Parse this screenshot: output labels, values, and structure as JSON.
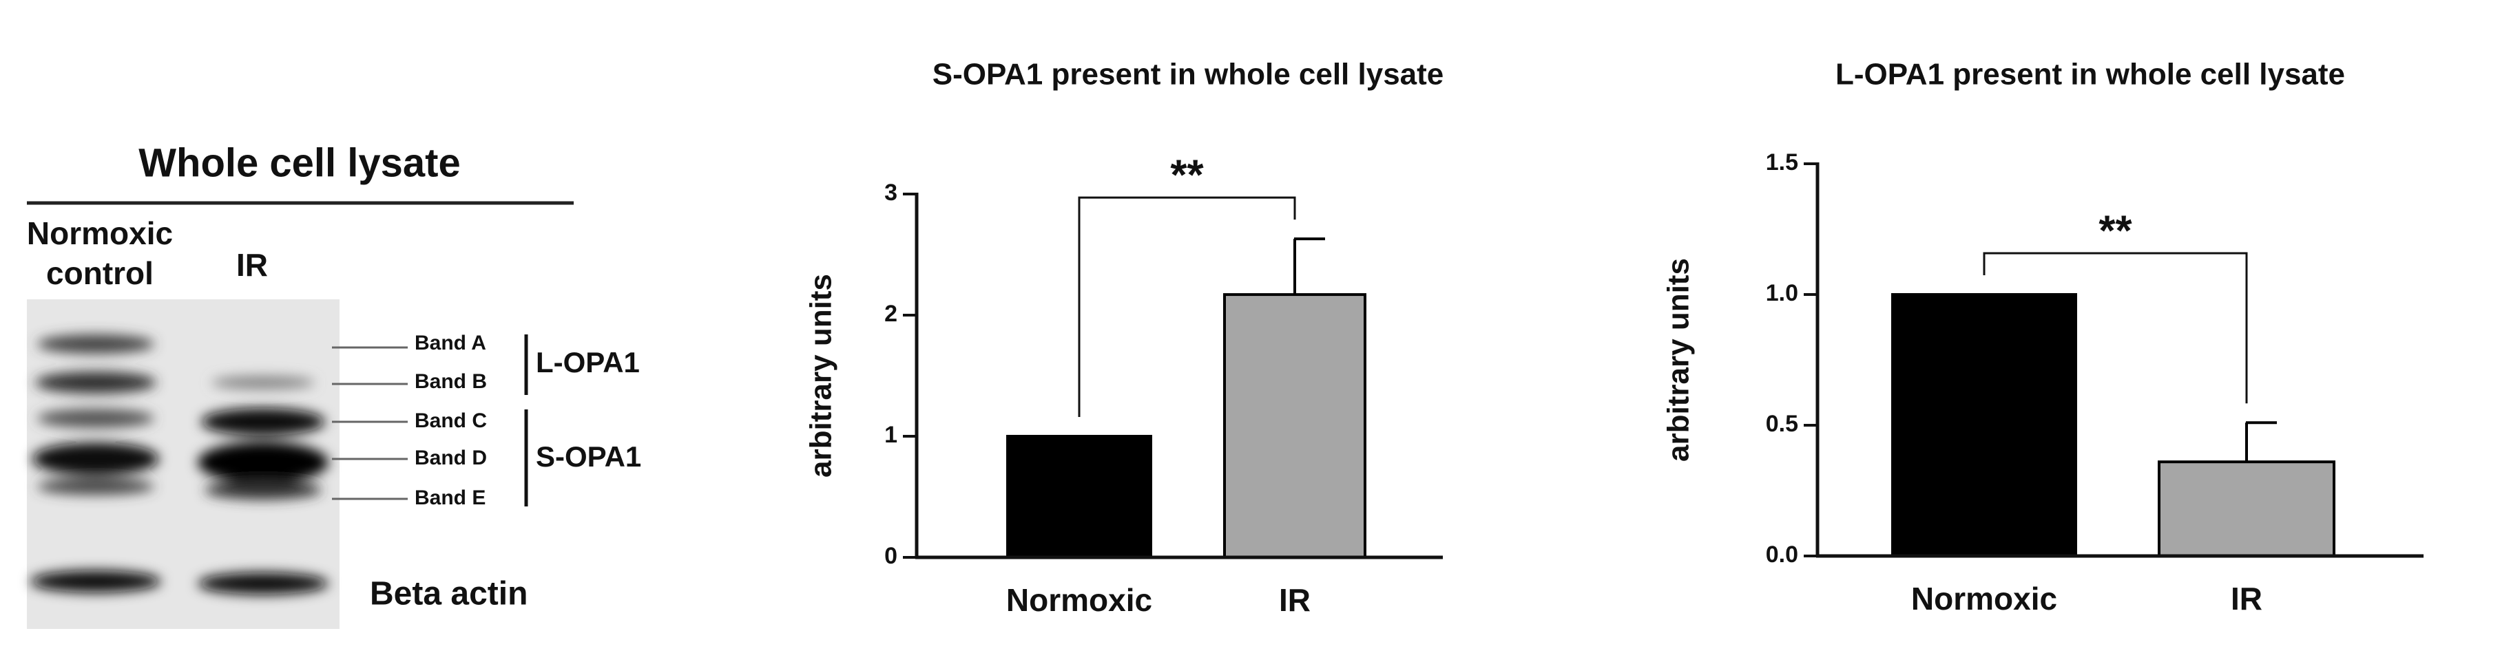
{
  "blot": {
    "title": "Whole cell lysate",
    "lanes": [
      "Normoxic control",
      "IR"
    ],
    "bands": [
      "Band A",
      "Band B",
      "Band C",
      "Band D",
      "Band E"
    ],
    "groups": [
      "L-OPA1",
      "S-OPA1"
    ],
    "loading_control": "Beta actin"
  },
  "chart_data": [
    {
      "type": "bar",
      "title": "S-OPA1 present in whole cell lysate",
      "y_label": "arbitrary units",
      "categories": [
        "Normoxic",
        "IR"
      ],
      "values": [
        1,
        2.17
      ],
      "errors": [
        null,
        0.46
      ],
      "colors": [
        "#000000",
        "#a6a6a6"
      ],
      "significance": "**",
      "ylim": [
        0,
        3
      ],
      "yticks": [
        0,
        1,
        2,
        3
      ]
    },
    {
      "type": "bar",
      "title": "L-OPA1 present in whole cell lysate",
      "y_label": "arbitrary units",
      "categories": [
        "Normoxic",
        "IR"
      ],
      "values": [
        1,
        0.36
      ],
      "errors": [
        null,
        0.15
      ],
      "colors": [
        "#000000",
        "#a6a6a6"
      ],
      "significance": "**",
      "ylim": [
        0,
        1.5
      ],
      "yticks": [
        {
          "value": 0,
          "label": "0.0"
        },
        0.5,
        {
          "value": 1,
          "label": "1.0"
        },
        1.5
      ]
    }
  ]
}
